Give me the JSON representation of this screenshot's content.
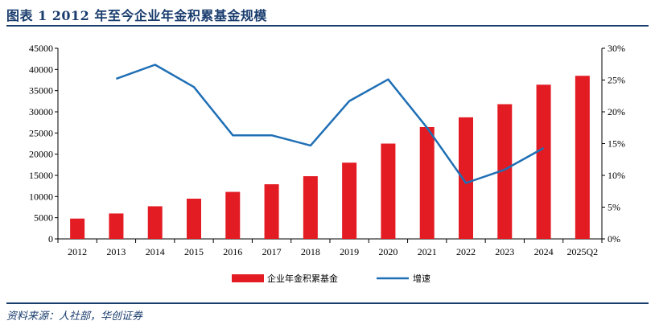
{
  "page": {
    "title": "图表 1   2012 年至今企业年金积累基金规模",
    "source": "资料来源：人社部，华创证券"
  },
  "colors": {
    "bar": "#e31b23",
    "line": "#1f6fb5",
    "title": "#1a3d6e"
  },
  "chart_data": {
    "type": "bar",
    "categories": [
      "2012",
      "2013",
      "2014",
      "2015",
      "2016",
      "2017",
      "2018",
      "2019",
      "2020",
      "2021",
      "2022",
      "2023",
      "2024",
      "2025Q2"
    ],
    "series": [
      {
        "name": "企业年金积累基金",
        "type": "bar",
        "axis": "left",
        "values": [
          4800,
          6000,
          7700,
          9500,
          11100,
          12900,
          14800,
          18000,
          22500,
          26400,
          28700,
          31800,
          36400,
          38500
        ]
      },
      {
        "name": "增速",
        "type": "line",
        "axis": "right",
        "values": [
          null,
          25.2,
          27.4,
          23.9,
          16.3,
          16.3,
          14.7,
          21.7,
          25.1,
          17.5,
          8.8,
          10.9,
          14.3,
          null
        ]
      }
    ],
    "y_left": {
      "ylim": [
        0,
        45000
      ],
      "ticks": [
        "0",
        "5000",
        "10000",
        "15000",
        "20000",
        "25000",
        "30000",
        "35000",
        "40000",
        "45000"
      ]
    },
    "y_right": {
      "ylim": [
        0,
        30
      ],
      "ticks": [
        "0%",
        "5%",
        "10%",
        "15%",
        "20%",
        "25%",
        "30%"
      ]
    },
    "grid": false,
    "legend_position": "bottom"
  }
}
